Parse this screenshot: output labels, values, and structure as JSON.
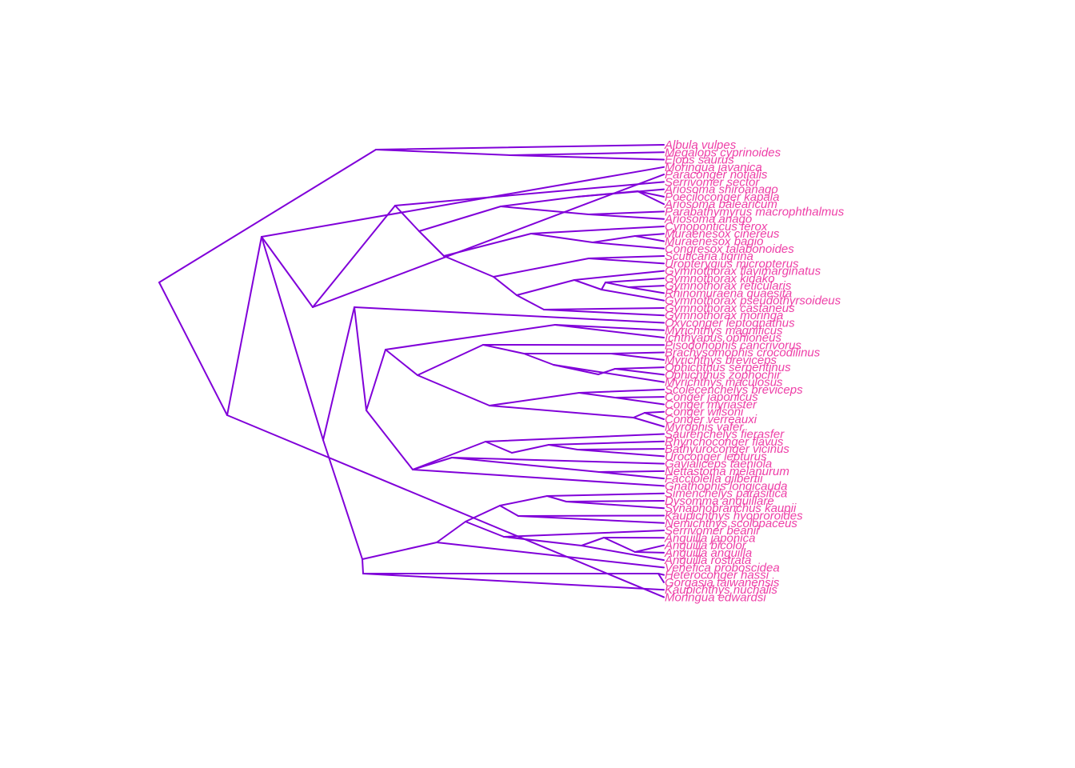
{
  "colors": {
    "branch": "#8000d9",
    "label": "#ee3fa7",
    "background": "#ffffff"
  },
  "tips": [
    "Albula vulpes",
    "Megalops cyprinoides",
    "Elops saurus",
    "Moringua javanica",
    "Paraconger notialis",
    "Serrivomer sector",
    "Ariosoma shiroanago",
    "Poeciloconger kapala",
    "Ariosoma balearicum",
    "Parabathymyrus macrophthalmus",
    "Ariosoma anago",
    "Cynoponticus ferox",
    "Muraenesox cinereus",
    "Muraenesox bagio",
    "Congresox talabonoides",
    "Scuticaria tigrina",
    "Uropterygius micropterus",
    "Gymnothorax flavimarginatus",
    "Gymnothorax kidako",
    "Gymnothorax reticularis",
    "Rhinomuraena quaesita",
    "Gymnothorax pseudothyrsoideus",
    "Gymnothorax castaneus",
    "Gymnothorax moringa",
    "Oxyconger leptognathus",
    "Myrichthys magnificus",
    "Ichthyapus ophioneus",
    "Pisodonophis cancrivorus",
    "Brachysomophis crocodilinus",
    "Myrichthys breviceps",
    "Ophichthus serpentinus",
    "Ophichthus zophochir",
    "Myrichthys maculosus",
    "Scolecenchelys breviceps",
    "Conger japonicus",
    "Conger myriaster",
    "Conger wilsoni",
    "Conger verreauxi",
    "Myrophis vafer",
    "Saurenchelys fierasfer",
    "Rhynchoconger flavus",
    "Bathyuroconger vicinus",
    "Uroconger lepturus",
    "Gavialiceps taeniola",
    "Nettastoma melanurum",
    "Facciolella gilbertii",
    "Gnathophis longicauda",
    "Simenchelys parasitica",
    "Dysomma anguillare",
    "Synaphobranchus kaupii",
    "Kaupichthys hyoproroides",
    "Nemichthys scolopaceus",
    "Serrivomer beanii",
    "Anguilla japonica",
    "Anguilla bicolor",
    "Anguilla anguilla",
    "Anguilla rostrata",
    "Venefica proboscidea",
    "Heteroconger hassi",
    "Gorgasia taiwanensis",
    "Kaupichthys nuchalis",
    "Moringua edwardsi"
  ]
}
